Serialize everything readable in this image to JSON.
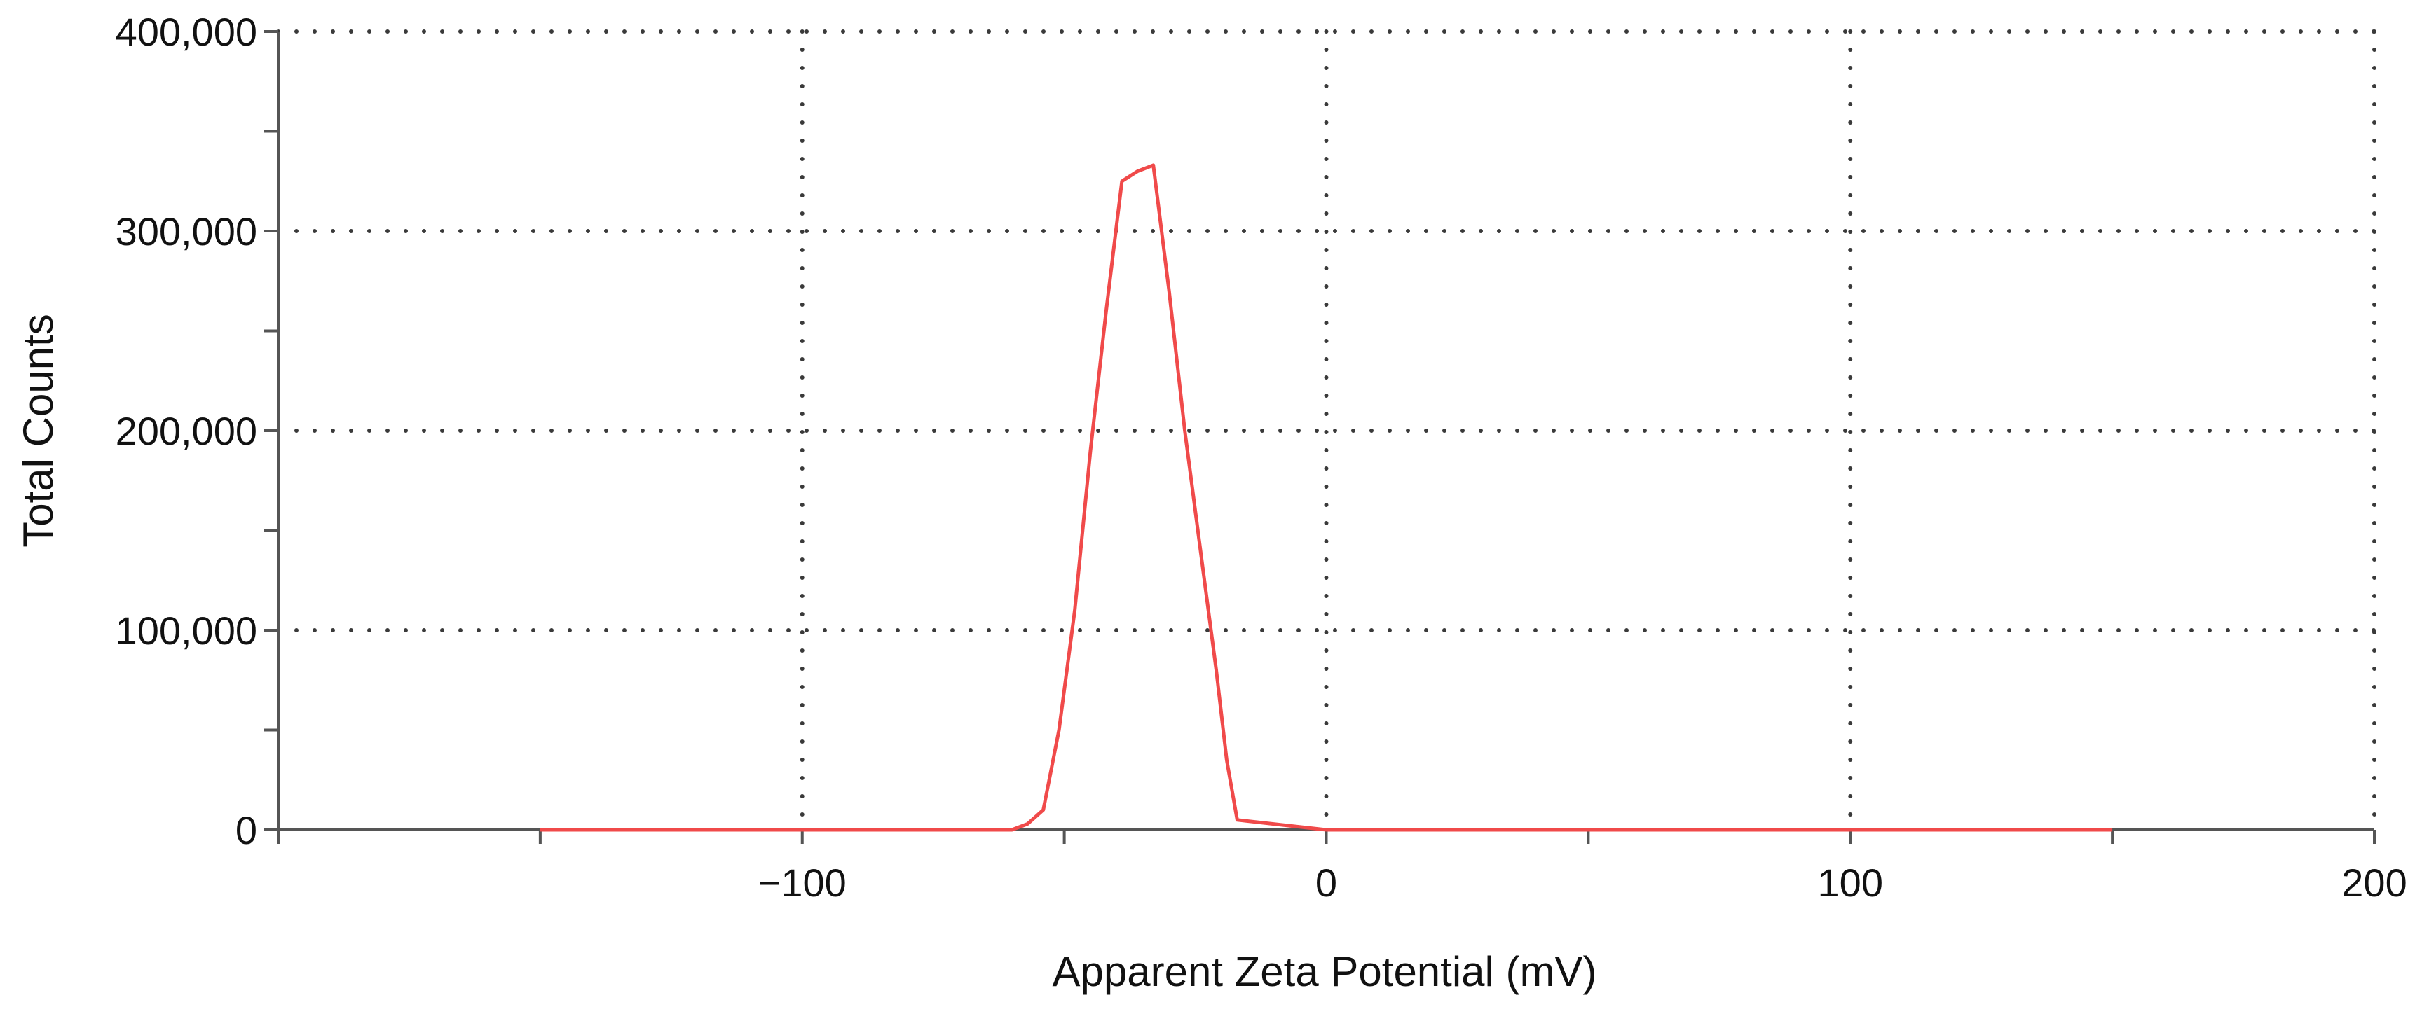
{
  "chart_data": {
    "type": "line",
    "title": "",
    "xlabel": "Apparent Zeta Potential (mV)",
    "ylabel": "Total Counts",
    "xlim": [
      -200,
      200
    ],
    "ylim": [
      0,
      400000
    ],
    "x_ticks": [
      -100,
      0,
      100,
      200
    ],
    "x_tick_labels": [
      "−100",
      "0",
      "100",
      "200"
    ],
    "x_minor_ticks": [
      -150,
      -50,
      50,
      150
    ],
    "y_ticks": [
      0,
      100000,
      200000,
      300000,
      400000
    ],
    "y_tick_labels": [
      "0",
      "100,000",
      "200,000",
      "300,000",
      "400,000"
    ],
    "y_minor_ticks": [
      50000,
      150000,
      250000,
      350000
    ],
    "grid": true,
    "grid_style": "dotted",
    "legend": "none",
    "series": [
      {
        "color": "#f04a4a",
        "x": [
          -150,
          -60,
          -57,
          -54,
          -51,
          -48,
          -45,
          -42,
          -39,
          -36,
          -33,
          -30,
          -27,
          -24,
          -21,
          -19,
          -17,
          0,
          50,
          100,
          150
        ],
        "y": [
          0,
          0,
          3000,
          10000,
          50000,
          110000,
          190000,
          260000,
          325000,
          330000,
          333000,
          270000,
          200000,
          140000,
          80000,
          35000,
          5000,
          0,
          0,
          0,
          0
        ]
      }
    ]
  }
}
